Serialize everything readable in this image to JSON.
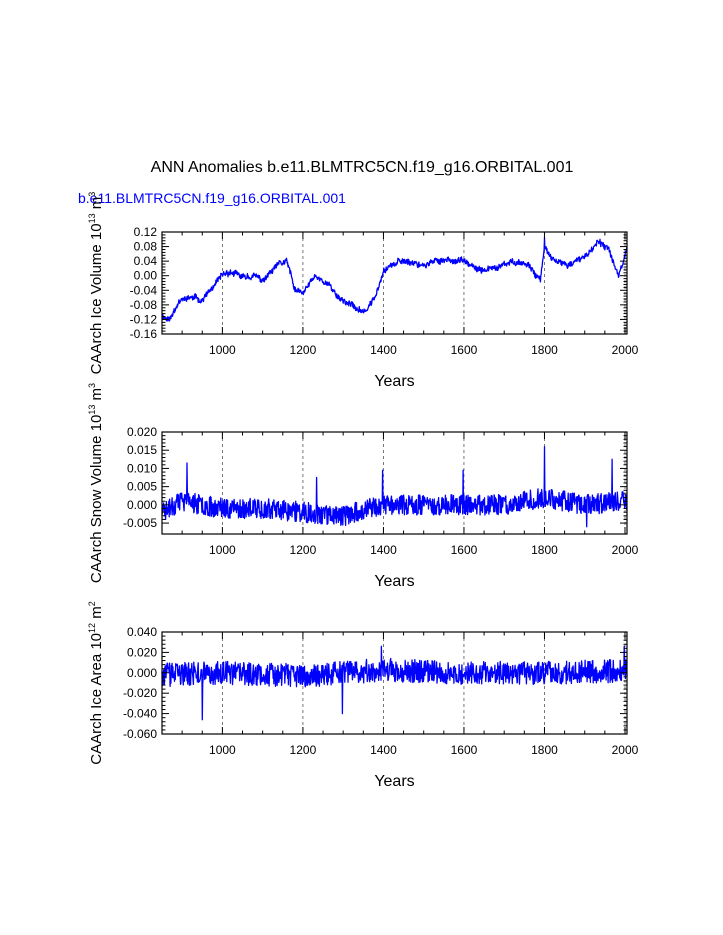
{
  "page": {
    "title": "ANN Anomalies b.e11.BLMTRC5CN.f19_g16.ORBITAL.001",
    "case_label": "b.e11.BLMTRC5CN.f19_g16.ORBITAL.001",
    "case_label_color": "#0000ff"
  },
  "chart_data": [
    {
      "type": "line",
      "ylabel": "CAArch Ice Volume 10",
      "ylabel_exp": "13",
      "ylabel_unit": " m",
      "ylabel_unit_exp": "3",
      "xlabel": "Years",
      "xlim": [
        850,
        2005
      ],
      "ylim": [
        -0.16,
        0.12
      ],
      "xticks": [
        1000,
        1200,
        1400,
        1600,
        1800,
        2000
      ],
      "xtick_labels": [
        "1000",
        "1200",
        "1400",
        "1600",
        "1800",
        "2000"
      ],
      "yticks": [
        -0.16,
        -0.12,
        -0.08,
        -0.04,
        0.0,
        0.04,
        0.08,
        0.12
      ],
      "ytick_labels": [
        "-0.16",
        "-0.12",
        "-0.08",
        "-0.04",
        "0.00",
        "0.04",
        "0.08",
        "0.12"
      ],
      "series_color": "#0000ff",
      "gen": {
        "seed": 11,
        "noise": 0.007,
        "drift": 0.02,
        "knots": [
          [
            850,
            -0.11
          ],
          [
            870,
            -0.12
          ],
          [
            890,
            -0.07
          ],
          [
            920,
            -0.06
          ],
          [
            950,
            -0.065
          ],
          [
            980,
            -0.03
          ],
          [
            1000,
            0.0
          ],
          [
            1020,
            0.01
          ],
          [
            1050,
            -0.005
          ],
          [
            1080,
            0.0
          ],
          [
            1100,
            -0.015
          ],
          [
            1140,
            0.03
          ],
          [
            1160,
            0.04
          ],
          [
            1180,
            -0.04
          ],
          [
            1200,
            -0.05
          ],
          [
            1230,
            0.0
          ],
          [
            1260,
            -0.02
          ],
          [
            1290,
            -0.06
          ],
          [
            1320,
            -0.08
          ],
          [
            1345,
            -0.1
          ],
          [
            1360,
            -0.09
          ],
          [
            1380,
            -0.06
          ],
          [
            1400,
            0.02
          ],
          [
            1430,
            0.035
          ],
          [
            1460,
            0.04
          ],
          [
            1500,
            0.03
          ],
          [
            1550,
            0.045
          ],
          [
            1600,
            0.04
          ],
          [
            1630,
            0.015
          ],
          [
            1680,
            0.02
          ],
          [
            1730,
            0.04
          ],
          [
            1760,
            0.03
          ],
          [
            1790,
            -0.01
          ],
          [
            1800,
            0.08
          ],
          [
            1820,
            0.04
          ],
          [
            1860,
            0.03
          ],
          [
            1900,
            0.05
          ],
          [
            1930,
            0.09
          ],
          [
            1960,
            0.07
          ],
          [
            1985,
            0.0
          ],
          [
            2005,
            0.08
          ]
        ]
      },
      "spikes": [
        [
          1800,
          0.105
        ],
        [
          1938,
          0.1
        ]
      ]
    },
    {
      "type": "line",
      "ylabel": "CAArch Snow Volume 10",
      "ylabel_exp": "13",
      "ylabel_unit": " m",
      "ylabel_unit_exp": "3",
      "xlabel": "Years",
      "xlim": [
        850,
        2005
      ],
      "ylim": [
        -0.008,
        0.02
      ],
      "xticks": [
        1000,
        1200,
        1400,
        1600,
        1800,
        2000
      ],
      "xtick_labels": [
        "1000",
        "1200",
        "1400",
        "1600",
        "1800",
        "2000"
      ],
      "yticks": [
        -0.005,
        0.0,
        0.005,
        0.01,
        0.015,
        0.02
      ],
      "ytick_labels": [
        "-0.005",
        "0.000",
        "0.005",
        "0.010",
        "0.015",
        "0.020"
      ],
      "series_color": "#0000ff",
      "gen": {
        "seed": 23,
        "noise": 0.0028,
        "drift": 0.0,
        "knots": [
          [
            850,
            -0.002
          ],
          [
            900,
            0.001
          ],
          [
            1000,
            -0.001
          ],
          [
            1100,
            -0.001
          ],
          [
            1200,
            -0.002
          ],
          [
            1300,
            -0.003
          ],
          [
            1400,
            0.0
          ],
          [
            1500,
            0.0
          ],
          [
            1600,
            0.0
          ],
          [
            1700,
            0.0
          ],
          [
            1800,
            0.002
          ],
          [
            1900,
            0.0
          ],
          [
            2005,
            0.001
          ]
        ]
      },
      "spikes": [
        [
          912,
          0.0115
        ],
        [
          1234,
          0.0075
        ],
        [
          1398,
          0.0095
        ],
        [
          1598,
          0.0095
        ],
        [
          1800,
          0.016
        ],
        [
          1968,
          0.0125
        ],
        [
          1905,
          -0.006
        ]
      ]
    },
    {
      "type": "line",
      "ylabel": "CAArch Ice Area 10",
      "ylabel_exp": "12",
      "ylabel_unit": " m",
      "ylabel_unit_exp": "2",
      "xlabel": "Years",
      "xlim": [
        850,
        2005
      ],
      "ylim": [
        -0.06,
        0.04
      ],
      "xticks": [
        1000,
        1200,
        1400,
        1600,
        1800,
        2000
      ],
      "xtick_labels": [
        "1000",
        "1200",
        "1400",
        "1600",
        "1800",
        "2000"
      ],
      "yticks": [
        -0.06,
        -0.04,
        -0.02,
        0.0,
        0.02,
        0.04
      ],
      "ytick_labels": [
        "-0.060",
        "-0.040",
        "-0.020",
        "0.000",
        "0.020",
        "0.040"
      ],
      "series_color": "#0000ff",
      "gen": {
        "seed": 37,
        "noise": 0.0115,
        "drift": 0.0,
        "knots": [
          [
            850,
            -0.002
          ],
          [
            1000,
            0.0
          ],
          [
            1200,
            -0.003
          ],
          [
            1400,
            0.003
          ],
          [
            1600,
            0.0
          ],
          [
            1800,
            0.0
          ],
          [
            2005,
            0.002
          ]
        ]
      },
      "spikes": [
        [
          950,
          -0.046
        ],
        [
          1298,
          -0.04
        ],
        [
          1395,
          0.026
        ],
        [
          1998,
          0.026
        ]
      ]
    }
  ]
}
